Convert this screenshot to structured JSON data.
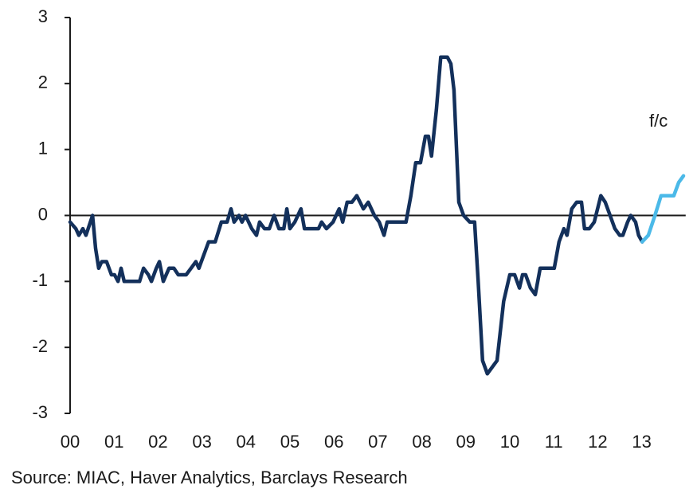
{
  "chart_data": {
    "type": "line",
    "annotation": "f/c",
    "source": "Source: MIAC, Haver Analytics, Barclays Research",
    "xlim": [
      2000,
      2014
    ],
    "xticks": [
      {
        "value": 2000,
        "label": "00"
      },
      {
        "value": 2001,
        "label": "01"
      },
      {
        "value": 2002,
        "label": "02"
      },
      {
        "value": 2003,
        "label": "03"
      },
      {
        "value": 2004,
        "label": "04"
      },
      {
        "value": 2005,
        "label": "05"
      },
      {
        "value": 2006,
        "label": "06"
      },
      {
        "value": 2007,
        "label": "07"
      },
      {
        "value": 2008,
        "label": "08"
      },
      {
        "value": 2009,
        "label": "09"
      },
      {
        "value": 2010,
        "label": "10"
      },
      {
        "value": 2011,
        "label": "11"
      },
      {
        "value": 2012,
        "label": "12"
      },
      {
        "value": 2013,
        "label": "13"
      }
    ],
    "ylim": [
      -3,
      3
    ],
    "yticks": [
      -3,
      -2,
      -1,
      0,
      1,
      2,
      3
    ],
    "zero_line": true,
    "series": [
      {
        "color": "#13305b",
        "x": [
          2000.0,
          2000.13,
          2000.2,
          2000.29,
          2000.36,
          2000.51,
          2000.58,
          2000.65,
          2000.72,
          2000.83,
          2000.94,
          2001.01,
          2001.09,
          2001.16,
          2001.23,
          2001.58,
          2001.67,
          2001.78,
          2001.85,
          2001.96,
          2002.03,
          2002.12,
          2002.25,
          2002.36,
          2002.46,
          2002.64,
          2002.75,
          2002.86,
          2002.93,
          2003.04,
          2003.15,
          2003.3,
          2003.44,
          2003.57,
          2003.66,
          2003.73,
          2003.84,
          2003.91,
          2003.99,
          2004.13,
          2004.24,
          2004.31,
          2004.42,
          2004.53,
          2004.64,
          2004.75,
          2004.86,
          2004.93,
          2005.0,
          2005.11,
          2005.25,
          2005.33,
          2005.65,
          2005.72,
          2005.83,
          2005.98,
          2006.12,
          2006.2,
          2006.3,
          2006.41,
          2006.52,
          2006.67,
          2006.78,
          2006.92,
          2007.03,
          2007.14,
          2007.21,
          2007.64,
          2007.75,
          2007.86,
          2007.97,
          2008.08,
          2008.15,
          2008.22,
          2008.33,
          2008.43,
          2008.58,
          2008.66,
          2008.73,
          2008.84,
          2008.95,
          2009.09,
          2009.2,
          2009.28,
          2009.38,
          2009.49,
          2009.71,
          2009.86,
          2010.0,
          2010.11,
          2010.22,
          2010.29,
          2010.36,
          2010.47,
          2010.58,
          2010.69,
          2011.01,
          2011.12,
          2011.23,
          2011.3,
          2011.41,
          2011.52,
          2011.63,
          2011.7,
          2011.81,
          2011.92,
          2012.07,
          2012.17,
          2012.28,
          2012.39,
          2012.5,
          2012.57,
          2012.68,
          2012.75,
          2012.86,
          2012.93,
          2013.01
        ],
        "values": [
          -0.1,
          -0.2,
          -0.3,
          -0.2,
          -0.3,
          0.0,
          -0.5,
          -0.8,
          -0.7,
          -0.7,
          -0.9,
          -0.9,
          -1.0,
          -0.8,
          -1.0,
          -1.0,
          -0.8,
          -0.9,
          -1.0,
          -0.8,
          -0.7,
          -1.0,
          -0.8,
          -0.8,
          -0.9,
          -0.9,
          -0.8,
          -0.7,
          -0.8,
          -0.6,
          -0.4,
          -0.4,
          -0.1,
          -0.1,
          0.1,
          -0.1,
          0.0,
          -0.1,
          0.0,
          -0.2,
          -0.3,
          -0.1,
          -0.2,
          -0.2,
          0.0,
          -0.2,
          -0.2,
          0.1,
          -0.2,
          -0.1,
          0.1,
          -0.2,
          -0.2,
          -0.1,
          -0.2,
          -0.1,
          0.1,
          -0.1,
          0.2,
          0.2,
          0.3,
          0.1,
          0.2,
          0.0,
          -0.1,
          -0.3,
          -0.1,
          -0.1,
          0.3,
          0.8,
          0.8,
          1.2,
          1.2,
          0.9,
          1.6,
          2.4,
          2.4,
          2.3,
          1.9,
          0.2,
          0.0,
          -0.1,
          -0.1,
          -1.0,
          -2.2,
          -2.4,
          -2.2,
          -1.3,
          -0.9,
          -0.9,
          -1.1,
          -0.9,
          -0.9,
          -1.1,
          -1.2,
          -0.8,
          -0.8,
          -0.4,
          -0.2,
          -0.3,
          0.1,
          0.2,
          0.2,
          -0.2,
          -0.2,
          -0.1,
          0.3,
          0.2,
          0.0,
          -0.2,
          -0.3,
          -0.3,
          -0.1,
          0.0,
          -0.1,
          -0.3,
          -0.4
        ]
      },
      {
        "color": "#4bb9e8",
        "x": [
          2013.01,
          2013.15,
          2013.3,
          2013.44,
          2013.73,
          2013.84,
          2013.95
        ],
        "values": [
          -0.4,
          -0.3,
          0.0,
          0.3,
          0.3,
          0.5,
          0.6
        ]
      }
    ]
  }
}
